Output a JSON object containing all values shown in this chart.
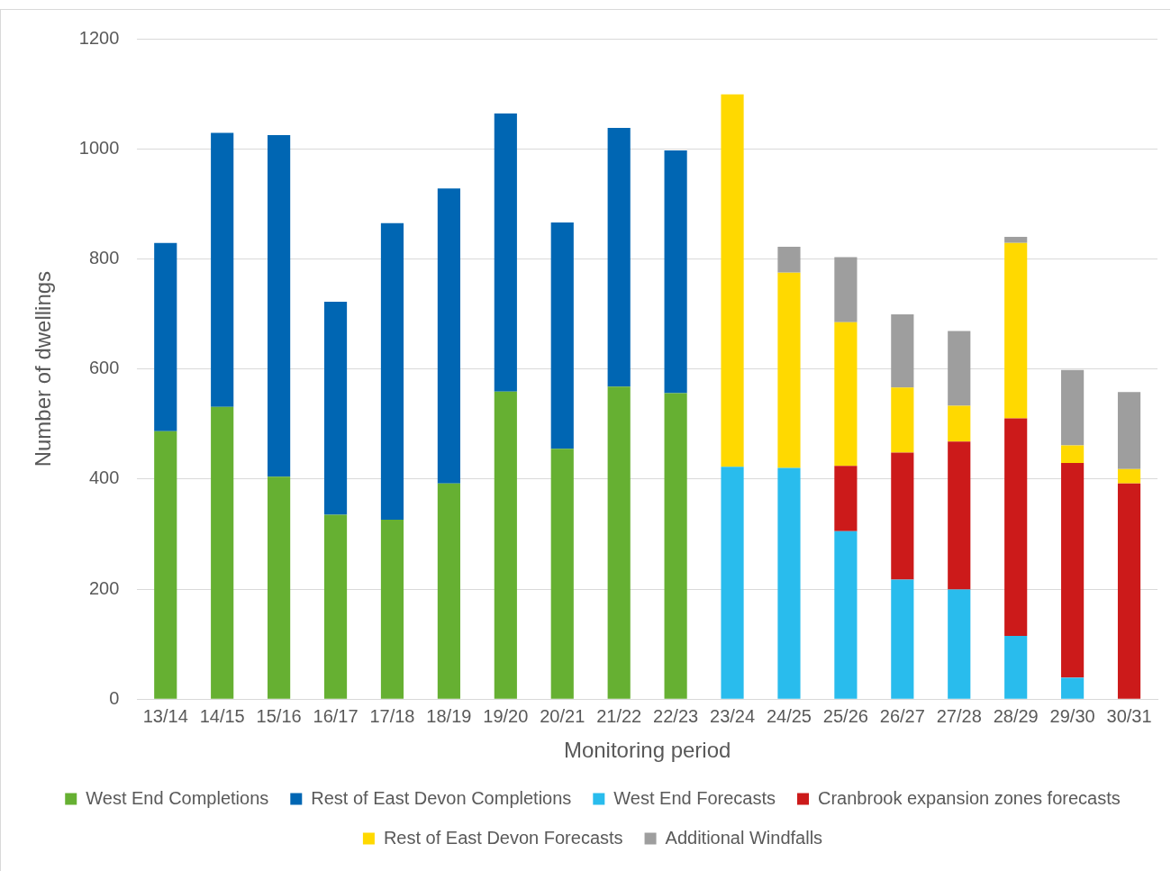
{
  "chart_data": {
    "type": "bar",
    "stacked": true,
    "xlabel": "Monitoring period",
    "ylabel": "Number of dwellings",
    "categories": [
      "13/14",
      "14/15",
      "15/16",
      "16/17",
      "17/18",
      "18/19",
      "19/20",
      "20/21",
      "21/22",
      "22/23",
      "23/24",
      "24/25",
      "25/26",
      "26/27",
      "27/28",
      "28/29",
      "29/30",
      "30/31"
    ],
    "series": [
      {
        "name": "West End Completions",
        "color": "#66b032",
        "values": [
          487,
          531,
          404,
          335,
          326,
          392,
          559,
          455,
          568,
          556,
          null,
          null,
          null,
          null,
          null,
          null,
          null,
          null
        ]
      },
      {
        "name": "Rest of East Devon Completions",
        "color": "#0066b3",
        "values": [
          342,
          498,
          621,
          387,
          539,
          536,
          505,
          411,
          470,
          441,
          null,
          null,
          null,
          null,
          null,
          null,
          null,
          null
        ]
      },
      {
        "name": "West End Forecasts",
        "color": "#29bced",
        "values": [
          null,
          null,
          null,
          null,
          null,
          null,
          null,
          null,
          null,
          null,
          422,
          420,
          305,
          217,
          199,
          115,
          39,
          null
        ]
      },
      {
        "name": "Cranbrook expansion zones forecasts",
        "color": "#cc1a1a",
        "values": [
          null,
          null,
          null,
          null,
          null,
          null,
          null,
          null,
          null,
          null,
          null,
          null,
          119,
          231,
          269,
          395,
          390,
          392
        ]
      },
      {
        "name": "Rest of East Devon Forecasts",
        "color": "#ffd900",
        "values": [
          null,
          null,
          null,
          null,
          null,
          null,
          null,
          null,
          null,
          null,
          677,
          355,
          261,
          118,
          65,
          319,
          32,
          26
        ]
      },
      {
        "name": "Additional Windfalls",
        "color": "#9e9e9e",
        "values": [
          null,
          null,
          null,
          null,
          null,
          null,
          null,
          null,
          null,
          null,
          null,
          47,
          118,
          133,
          136,
          11,
          137,
          140
        ]
      }
    ],
    "ylim": [
      0,
      1200
    ],
    "yticks": [
      0,
      200,
      400,
      600,
      800,
      1000,
      1200
    ],
    "grid": "y",
    "legend": "bottom"
  }
}
